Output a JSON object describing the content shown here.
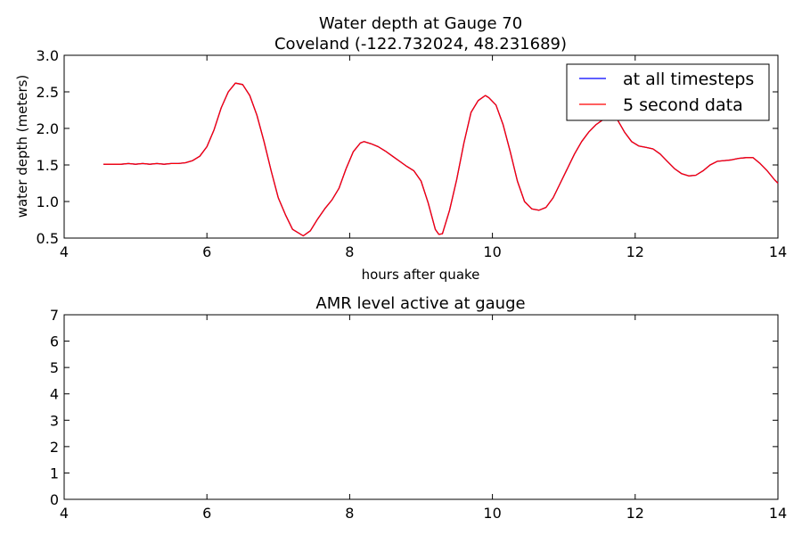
{
  "chart_data": [
    {
      "type": "line",
      "title": "Water depth at Gauge 70",
      "subtitle": "Coveland  (-122.732024, 48.231689)",
      "xlabel": "hours after quake",
      "ylabel": "water depth (meters)",
      "xlim": [
        4,
        14
      ],
      "ylim": [
        0.5,
        3.0
      ],
      "xticks": [
        4,
        6,
        8,
        10,
        12,
        14
      ],
      "yticks": [
        "0.5",
        "1.0",
        "1.5",
        "2.0",
        "2.5",
        "3.0"
      ],
      "grid": false,
      "legend": "top-right",
      "series": [
        {
          "name": "at all timesteps",
          "color": "#0000ff",
          "x": [
            4.55,
            4.8,
            4.9,
            5.0,
            5.1,
            5.2,
            5.3,
            5.4,
            5.5,
            5.6,
            5.7,
            5.8,
            5.9,
            6.0,
            6.1,
            6.2,
            6.3,
            6.4,
            6.5,
            6.6,
            6.7,
            6.8,
            6.9,
            7.0,
            7.1,
            7.2,
            7.35,
            7.45,
            7.55,
            7.65,
            7.75,
            7.85,
            7.95,
            8.05,
            8.15,
            8.2,
            8.3,
            8.4,
            8.5,
            8.6,
            8.7,
            8.8,
            8.9,
            9.0,
            9.1,
            9.2,
            9.25,
            9.3,
            9.4,
            9.5,
            9.6,
            9.7,
            9.8,
            9.9,
            9.95,
            10.05,
            10.15,
            10.25,
            10.35,
            10.45,
            10.55,
            10.65,
            10.75,
            10.85,
            10.95,
            11.05,
            11.15,
            11.25,
            11.35,
            11.45,
            11.55,
            11.65,
            11.75,
            11.85,
            11.95,
            12.05,
            12.15,
            12.25,
            12.35,
            12.45,
            12.55,
            12.65,
            12.75,
            12.85,
            12.95,
            13.05,
            13.15,
            13.25,
            13.35,
            13.45,
            13.55,
            13.65,
            13.75,
            13.85,
            13.95,
            14.0
          ],
          "values": [
            1.51,
            1.51,
            1.52,
            1.51,
            1.52,
            1.51,
            1.52,
            1.51,
            1.52,
            1.52,
            1.53,
            1.56,
            1.62,
            1.75,
            1.98,
            2.28,
            2.5,
            2.62,
            2.6,
            2.45,
            2.18,
            1.82,
            1.42,
            1.05,
            0.82,
            0.62,
            0.53,
            0.6,
            0.76,
            0.9,
            1.02,
            1.18,
            1.45,
            1.68,
            1.8,
            1.82,
            1.79,
            1.75,
            1.69,
            1.62,
            1.55,
            1.48,
            1.42,
            1.28,
            0.98,
            0.62,
            0.55,
            0.56,
            0.88,
            1.3,
            1.8,
            2.22,
            2.38,
            2.45,
            2.42,
            2.32,
            2.05,
            1.68,
            1.28,
            1.0,
            0.9,
            0.88,
            0.92,
            1.05,
            1.25,
            1.45,
            1.65,
            1.82,
            1.95,
            2.05,
            2.12,
            2.18,
            2.12,
            1.95,
            1.82,
            1.76,
            1.74,
            1.72,
            1.65,
            1.55,
            1.45,
            1.38,
            1.35,
            1.36,
            1.42,
            1.5,
            1.55,
            1.56,
            1.57,
            1.59,
            1.6,
            1.6,
            1.52,
            1.42,
            1.3,
            1.25
          ]
        },
        {
          "name": "5 second data",
          "color": "#ff0000",
          "x": [
            4.55,
            4.8,
            4.9,
            5.0,
            5.1,
            5.2,
            5.3,
            5.4,
            5.5,
            5.6,
            5.7,
            5.8,
            5.9,
            6.0,
            6.1,
            6.2,
            6.3,
            6.4,
            6.5,
            6.6,
            6.7,
            6.8,
            6.9,
            7.0,
            7.1,
            7.2,
            7.35,
            7.45,
            7.55,
            7.65,
            7.75,
            7.85,
            7.95,
            8.05,
            8.15,
            8.2,
            8.3,
            8.4,
            8.5,
            8.6,
            8.7,
            8.8,
            8.9,
            9.0,
            9.1,
            9.2,
            9.25,
            9.3,
            9.4,
            9.5,
            9.6,
            9.7,
            9.8,
            9.9,
            9.95,
            10.05,
            10.15,
            10.25,
            10.35,
            10.45,
            10.55,
            10.65,
            10.75,
            10.85,
            10.95,
            11.05,
            11.15,
            11.25,
            11.35,
            11.45,
            11.55,
            11.65,
            11.75,
            11.85,
            11.95,
            12.05,
            12.15,
            12.25,
            12.35,
            12.45,
            12.55,
            12.65,
            12.75,
            12.85,
            12.95,
            13.05,
            13.15,
            13.25,
            13.35,
            13.45,
            13.55,
            13.65,
            13.75,
            13.85,
            13.95,
            14.0
          ],
          "values": [
            1.51,
            1.51,
            1.52,
            1.51,
            1.52,
            1.51,
            1.52,
            1.51,
            1.52,
            1.52,
            1.53,
            1.56,
            1.62,
            1.75,
            1.98,
            2.28,
            2.5,
            2.62,
            2.6,
            2.45,
            2.18,
            1.82,
            1.42,
            1.05,
            0.82,
            0.62,
            0.53,
            0.6,
            0.76,
            0.9,
            1.02,
            1.18,
            1.45,
            1.68,
            1.8,
            1.82,
            1.79,
            1.75,
            1.69,
            1.62,
            1.55,
            1.48,
            1.42,
            1.28,
            0.98,
            0.62,
            0.55,
            0.56,
            0.88,
            1.3,
            1.8,
            2.22,
            2.38,
            2.45,
            2.42,
            2.32,
            2.05,
            1.68,
            1.28,
            1.0,
            0.9,
            0.88,
            0.92,
            1.05,
            1.25,
            1.45,
            1.65,
            1.82,
            1.95,
            2.05,
            2.12,
            2.18,
            2.12,
            1.95,
            1.82,
            1.76,
            1.74,
            1.72,
            1.65,
            1.55,
            1.45,
            1.38,
            1.35,
            1.36,
            1.42,
            1.5,
            1.55,
            1.56,
            1.57,
            1.59,
            1.6,
            1.6,
            1.52,
            1.42,
            1.3,
            1.25
          ]
        }
      ]
    },
    {
      "type": "line",
      "title": "AMR level active at gauge",
      "xlabel": "",
      "ylabel": "",
      "xlim": [
        4,
        14
      ],
      "ylim": [
        0,
        7
      ],
      "xticks": [
        4,
        6,
        8,
        10,
        12,
        14
      ],
      "yticks": [
        0,
        1,
        2,
        3,
        4,
        5,
        6,
        7
      ],
      "grid": false,
      "series": []
    }
  ]
}
